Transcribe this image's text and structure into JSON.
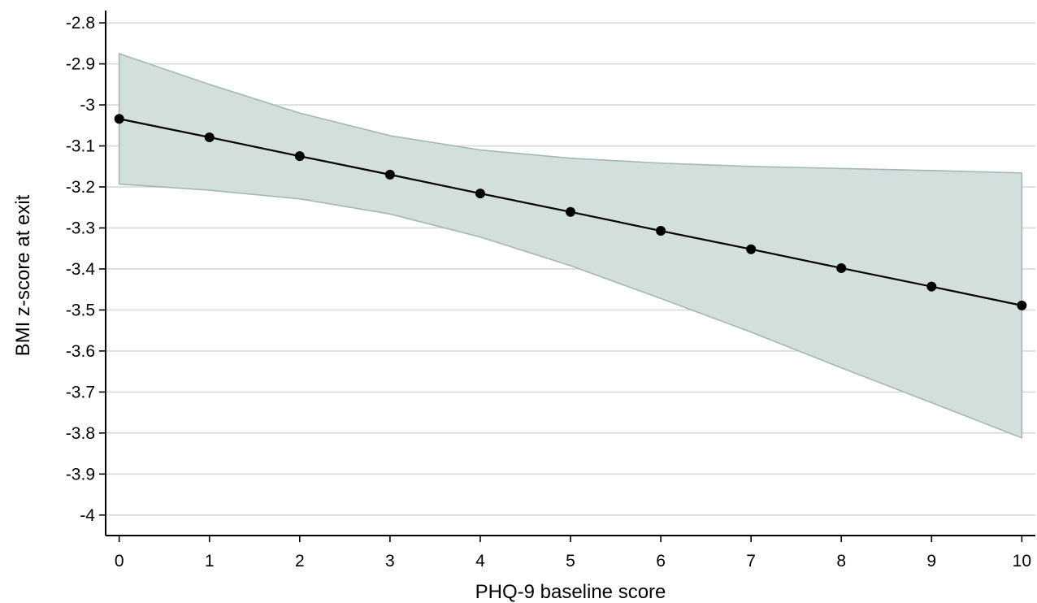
{
  "chart_data": {
    "type": "line",
    "xlabel": "PHQ-9 baseline score",
    "ylabel": "BMI z-score at exit",
    "x": [
      0,
      1,
      2,
      3,
      4,
      5,
      6,
      7,
      8,
      9,
      10
    ],
    "series": [
      {
        "values": [
          -3.034,
          -3.079,
          -3.125,
          -3.17,
          -3.216,
          -3.261,
          -3.307,
          -3.352,
          -3.398,
          -3.443,
          -3.489
        ],
        "ci_upper": [
          -2.875,
          -2.95,
          -3.02,
          -3.075,
          -3.11,
          -3.13,
          -3.142,
          -3.15,
          -3.155,
          -3.16,
          -3.166
        ],
        "ci_lower": [
          -3.193,
          -3.208,
          -3.229,
          -3.266,
          -3.322,
          -3.392,
          -3.472,
          -3.554,
          -3.641,
          -3.726,
          -3.812
        ]
      }
    ],
    "xlim": [
      -0.15,
      10.15
    ],
    "ylim": [
      -4.05,
      -2.77
    ],
    "x_ticks": [
      "0",
      "1",
      "2",
      "3",
      "4",
      "5",
      "6",
      "7",
      "8",
      "9",
      "10"
    ],
    "y_ticks": [
      "-2.8",
      "-2.9",
      "-3",
      "-3.1",
      "-3.2",
      "-3.3",
      "-3.4",
      "-3.5",
      "-3.6",
      "-3.7",
      "-3.8",
      "-3.9",
      "-4"
    ],
    "grid": true,
    "legend": false,
    "colors": {
      "line": "#000000",
      "marker": "#000000",
      "ci_fill": "#d3dfdd",
      "ci_edge": "#a3b8b4",
      "grid": "#d9d9d9",
      "axis": "#000000"
    }
  }
}
